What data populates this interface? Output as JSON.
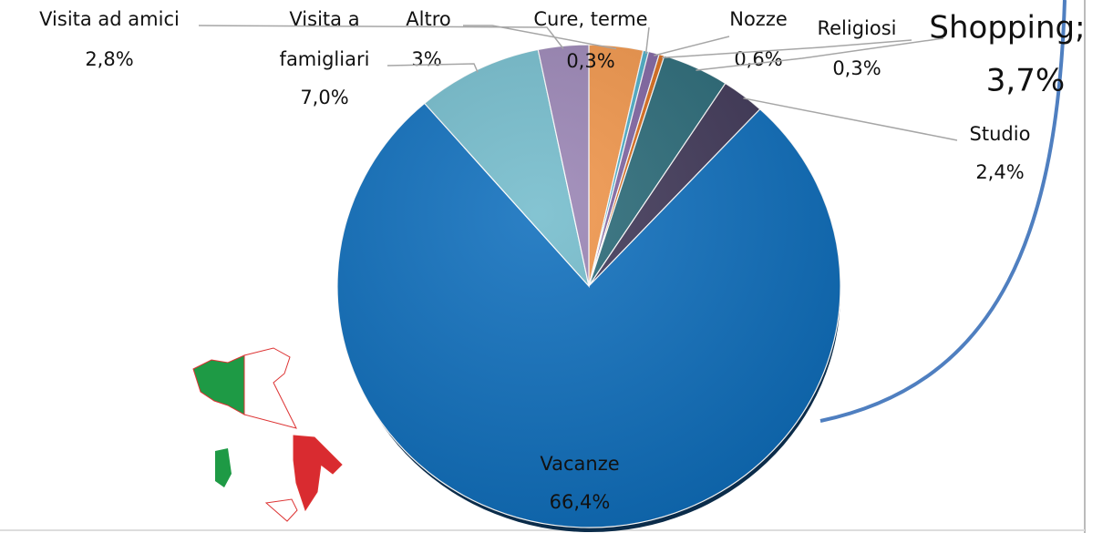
{
  "chart_data": {
    "type": "pie",
    "categories": [
      "Altro",
      "Cure, terme",
      "Nozze",
      "Religiosi",
      "Shopping;",
      "Studio",
      "Vacanze",
      "Visita a famigliari",
      "Visita ad amici"
    ],
    "values": [
      3,
      0.3,
      0.6,
      0.3,
      3.7,
      2.4,
      66.4,
      7.0,
      2.8
    ],
    "value_labels": [
      "3%",
      "0,3%",
      "0,6%",
      "0,3%",
      "3,7%",
      "2,4%",
      "66,4%",
      "7,0%",
      "2,8%"
    ],
    "colors": [
      "#f0954a",
      "#4bacc6",
      "#8064a2",
      "#d96b1a",
      "#2a6a78",
      "#403858",
      "#0f6fbd",
      "#74bccc",
      "#9a85b5"
    ]
  }
}
